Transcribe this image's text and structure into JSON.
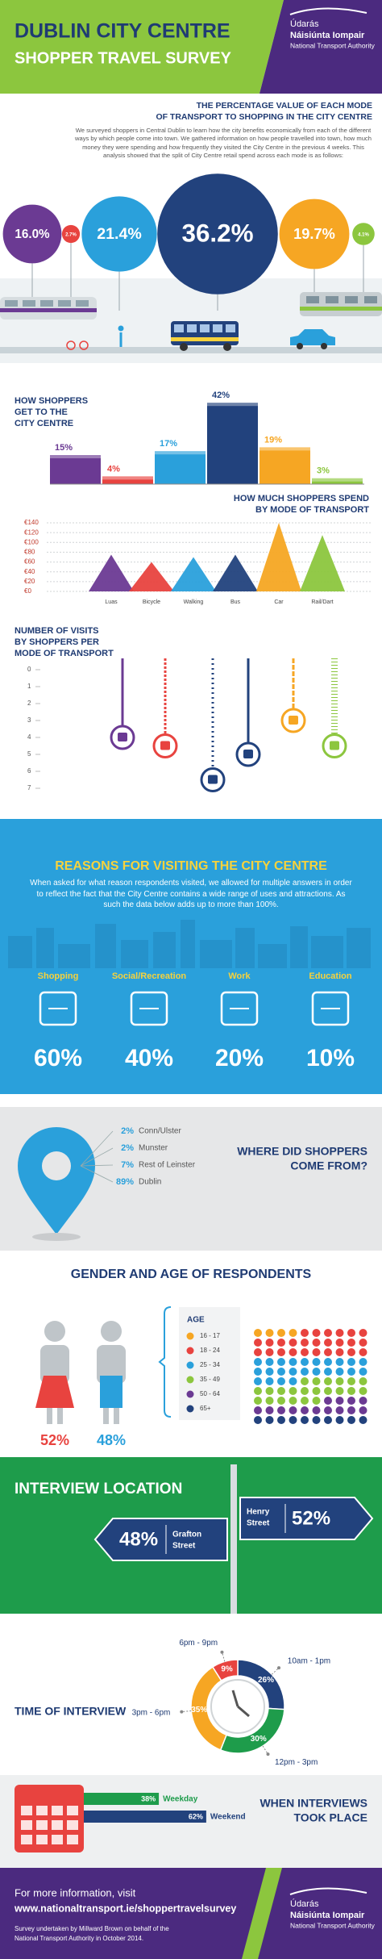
{
  "header": {
    "title": "DUBLIN CITY CENTRE",
    "subtitle": "SHOPPER TRAVEL SURVEY",
    "logo": [
      "Údarás",
      "Náisiúnta Iompair",
      "National Transport Authority"
    ]
  },
  "mode_value": {
    "type": "bubble",
    "title": [
      "THE PERCENTAGE VALUE OF EACH MODE",
      "OF TRANSPORT TO SHOPPING IN THE CITY CENTRE"
    ],
    "text": "We surveyed shoppers in Central Dublin to learn how the city benefits economically from each of the different ways by which people come into town. We gathered information on how people travelled into town, how much money they were spending and how frequently they visited the City Centre in the previous 4 weeks. This analysis showed that the split of City Centre retail spend across each mode is as follows:",
    "values": [
      16.0,
      2.7,
      21.4,
      36.2,
      19.7,
      4.1
    ],
    "value_labels": [
      "16.0%",
      "2.7%",
      "21.4%",
      "36.2%",
      "19.7%",
      "4.1%"
    ],
    "colors": [
      "#6b3a93",
      "#e8433f",
      "#2aa0db",
      "#22427d",
      "#f6a623",
      "#8cc63e"
    ]
  },
  "travel_mode": {
    "type": "bar",
    "title": [
      "HOW SHOPPERS",
      "GET TO THE",
      "CITY CENTRE"
    ],
    "values": [
      15,
      4,
      17,
      42,
      19,
      3
    ],
    "value_labels": [
      "15%",
      "4%",
      "17%",
      "42%",
      "19%",
      "3%"
    ],
    "colors": [
      "#6b3a93",
      "#e8433f",
      "#2aa0db",
      "#22427d",
      "#f6a623",
      "#8cc63e"
    ]
  },
  "spend": {
    "type": "triangle",
    "title": [
      "HOW MUCH SHOPPERS SPEND",
      "BY MODE OF TRANSPORT"
    ],
    "categories": [
      "Luas",
      "Bicycle",
      "Walking",
      "Bus",
      "Car",
      "Rail/Dart"
    ],
    "values": [
      75,
      60,
      70,
      75,
      140,
      115
    ],
    "colors": [
      "#6b3a93",
      "#e8433f",
      "#2aa0db",
      "#22427d",
      "#f6a623",
      "#8cc63e"
    ],
    "ylim": [
      0,
      140
    ],
    "yticks": [
      {
        "value": 140,
        "label": "€140"
      },
      {
        "value": 120,
        "label": "€120"
      },
      {
        "value": 100,
        "label": "€100"
      },
      {
        "value": 80,
        "label": "€80"
      },
      {
        "value": 60,
        "label": "€60"
      },
      {
        "value": 40,
        "label": "€40"
      },
      {
        "value": 20,
        "label": "€20"
      },
      {
        "value": 0,
        "label": "€0"
      }
    ],
    "grid": true
  },
  "visits": {
    "type": "strand",
    "title": [
      "NUMBER OF VISITS",
      "BY SHOPPERS PER",
      "MODE OF TRANSPORT"
    ],
    "values": [
      4,
      4.5,
      6.5,
      5,
      3,
      4.5
    ],
    "colors": [
      "#6b3a93",
      "#e8433f",
      "#22427d",
      "#22427d",
      "#f6a623",
      "#8cc63e"
    ],
    "ylim": [
      0,
      7
    ],
    "yticks": [
      0,
      1,
      2,
      3,
      4,
      5,
      6,
      7
    ]
  },
  "reasons": {
    "title": "REASONS FOR VISITING THE CITY CENTRE",
    "text": "When asked for what reason respondents visited, we allowed for multiple answers in order to reflect the fact that the City Centre contains a wide range of uses and attractions. As such the data below adds up to more than 100%.",
    "items": [
      {
        "label": "Shopping",
        "value": "60%"
      },
      {
        "label": "Social/Recreation",
        "value": "40%"
      },
      {
        "label": "Work",
        "value": "20%"
      },
      {
        "label": "Education",
        "value": "10%"
      }
    ]
  },
  "origin": {
    "title": [
      "WHERE DID SHOPPERS",
      "COME FROM?"
    ],
    "items": [
      {
        "value": "2%",
        "label": "Conn/Ulster"
      },
      {
        "value": "2%",
        "label": "Munster"
      },
      {
        "value": "7%",
        "label": "Rest of Leinster"
      },
      {
        "value": "89%",
        "label": "Dublin"
      }
    ]
  },
  "demographics": {
    "title": "GENDER AND AGE OF RESPONDENTS",
    "female": "52%",
    "male": "48%",
    "age": {
      "type": "dots",
      "title": "AGE",
      "categories": [
        "16 - 17",
        "18 - 24",
        "25 - 34",
        "35 - 49",
        "50 - 64",
        "65+"
      ],
      "values": [
        4,
        26,
        24,
        22,
        14,
        10
      ],
      "colors": [
        "#f6a623",
        "#e8433f",
        "#2aa0db",
        "#8cc63e",
        "#6b3a93",
        "#22427d"
      ]
    }
  },
  "location": {
    "title": "INTERVIEW LOCATION",
    "grafton": {
      "value": "48%",
      "label": [
        "Grafton",
        "Street"
      ]
    },
    "henry": {
      "value": "52%",
      "label": [
        "Henry",
        "Street"
      ]
    }
  },
  "time": {
    "type": "donut",
    "title": "TIME OF INTERVIEW",
    "categories": [
      "10am - 1pm",
      "12pm - 3pm",
      "3pm - 6pm",
      "6pm - 9pm"
    ],
    "values": [
      26,
      30,
      35,
      9
    ],
    "value_labels": [
      "26%",
      "30%",
      "35%",
      "9%"
    ],
    "colors": [
      "#22427d",
      "#1e9c4b",
      "#f6a623",
      "#e8433f"
    ]
  },
  "when": {
    "type": "hbar",
    "title": [
      "WHEN INTERVIEWS",
      "TOOK PLACE"
    ],
    "categories": [
      "Weekday",
      "Weekend"
    ],
    "values": [
      38,
      62
    ],
    "value_labels": [
      "38%",
      "62%"
    ],
    "colors": [
      "#1e9c4b",
      "#22427d"
    ]
  },
  "footer": {
    "intro": "For more information, visit",
    "url": "www.nationaltransport.ie/shoppertravelsurvey",
    "note": [
      "Survey undertaken by Millward Brown on behalf of the",
      "National Transport Authority in October 2014."
    ],
    "logo": [
      "Údarás",
      "Náisiúnta Iompair",
      "National Transport Authority"
    ]
  }
}
